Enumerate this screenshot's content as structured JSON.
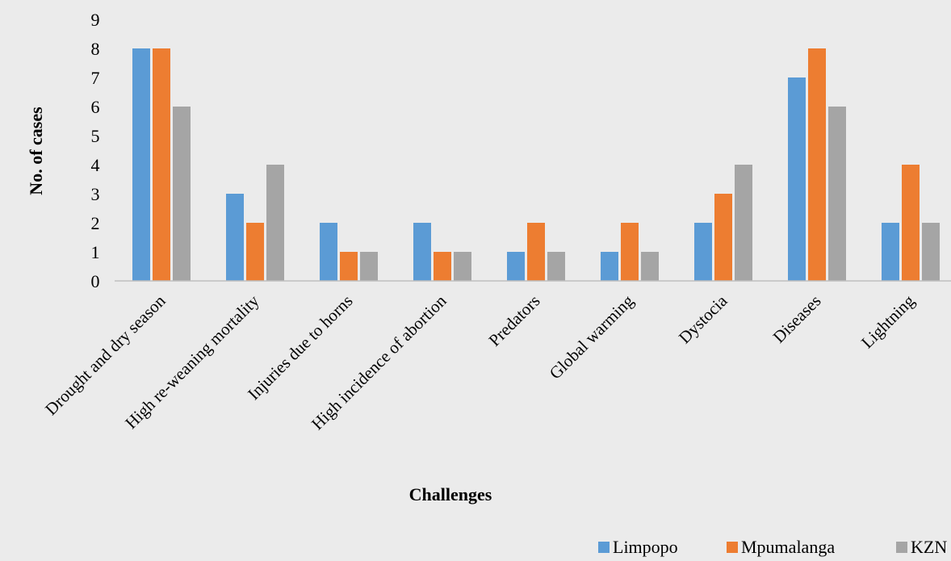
{
  "chart_data": {
    "type": "bar",
    "title": "",
    "xlabel": "Challenges",
    "ylabel": "No. of cases",
    "ylim": [
      0,
      9
    ],
    "yticks": [
      0,
      1,
      2,
      3,
      4,
      5,
      6,
      7,
      8,
      9
    ],
    "grid": false,
    "legend_position": "bottom-right",
    "categories": [
      "Drought and dry season",
      "High re-weaning mortality",
      "Injuries due to horns",
      "High incidence of abortion",
      "Predators",
      "Global warming",
      "Dystocia",
      "Diseases",
      "Lightning"
    ],
    "series": [
      {
        "name": "Limpopo",
        "color": "#5b9bd5",
        "values": [
          8,
          3,
          2,
          2,
          1,
          1,
          2,
          7,
          2
        ]
      },
      {
        "name": "Mpumalanga",
        "color": "#ed7d31",
        "values": [
          8,
          2,
          1,
          1,
          2,
          2,
          3,
          8,
          4
        ]
      },
      {
        "name": "KZN",
        "color": "#a5a5a5",
        "values": [
          6,
          4,
          1,
          1,
          1,
          1,
          4,
          6,
          2
        ]
      }
    ]
  },
  "colors": {
    "background": "#ebebeb",
    "axis_line": "#bfbfbf"
  }
}
